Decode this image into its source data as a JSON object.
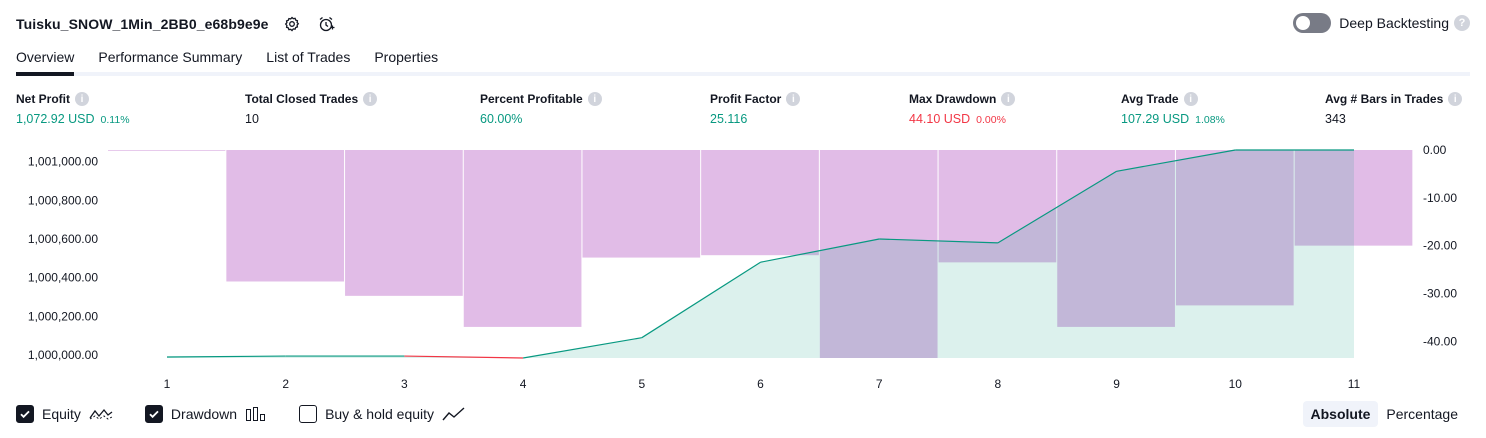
{
  "header": {
    "strategy_name": "Tuisku_SNOW_1Min_2BB0_e68b9e9e",
    "deep_backtesting_label": "Deep Backtesting",
    "deep_backtesting_enabled": false,
    "help_glyph": "?"
  },
  "tabs": [
    {
      "label": "Overview",
      "active": true
    },
    {
      "label": "Performance Summary",
      "active": false
    },
    {
      "label": "List of Trades",
      "active": false
    },
    {
      "label": "Properties",
      "active": false
    }
  ],
  "info_glyph": "i",
  "stats": [
    {
      "label": "Net Profit",
      "value": "1,072.92 USD",
      "pct": "0.11%",
      "color": "#089981"
    },
    {
      "label": "Total Closed Trades",
      "value": "10",
      "pct": "",
      "color": "#131722"
    },
    {
      "label": "Percent Profitable",
      "value": "60.00%",
      "pct": "",
      "color": "#089981"
    },
    {
      "label": "Profit Factor",
      "value": "25.116",
      "pct": "",
      "color": "#089981"
    },
    {
      "label": "Max Drawdown",
      "value": "44.10 USD",
      "pct": "0.00%",
      "color": "#f23645"
    },
    {
      "label": "Avg Trade",
      "value": "107.29 USD",
      "pct": "1.08%",
      "color": "#089981"
    },
    {
      "label": "Avg # Bars in Trades",
      "value": "343",
      "pct": "",
      "color": "#131722"
    }
  ],
  "chart_data": {
    "type": "line",
    "x": [
      1,
      2,
      3,
      4,
      5,
      6,
      7,
      8,
      9,
      10,
      11
    ],
    "x_tick_labels": [
      "1",
      "2",
      "3",
      "4",
      "5",
      "6",
      "7",
      "8",
      "9",
      "10",
      "11"
    ],
    "series": [
      {
        "axis": "left",
        "kind": "area-line",
        "values": [
          999990,
          999995,
          999995,
          999985,
          1000090,
          1000480,
          1000600,
          1000580,
          1000950,
          1001060,
          1001060
        ],
        "color": "#089981"
      },
      {
        "axis": "right",
        "kind": "bar",
        "values": [
          0,
          -27.5,
          -30.5,
          -37,
          -22.5,
          -22,
          -43.5,
          -23.5,
          -37,
          -32.5,
          -20
        ],
        "color": "#ce93d8"
      }
    ],
    "left_axis": {
      "ticks": [
        "1,001,000.00",
        "1,000,800.00",
        "1,000,600.00",
        "1,000,400.00",
        "1,000,200.00",
        "1,000,000.00"
      ],
      "ylim": [
        999985,
        1001060
      ]
    },
    "right_axis": {
      "ticks": [
        "0.00",
        "-10.00",
        "-20.00",
        "-30.00",
        "-40.00"
      ],
      "ylim": [
        -43.5,
        0
      ]
    },
    "grid": false
  },
  "footer": {
    "legend": [
      {
        "label": "Equity",
        "checked": true,
        "icon": "equity-line-icon"
      },
      {
        "label": "Drawdown",
        "checked": true,
        "icon": "drawdown-bars-icon"
      },
      {
        "label": "Buy & hold equity",
        "checked": false,
        "icon": "buy-hold-line-icon"
      }
    ],
    "modes": [
      {
        "label": "Absolute",
        "active": true
      },
      {
        "label": "Percentage",
        "active": false
      }
    ]
  }
}
